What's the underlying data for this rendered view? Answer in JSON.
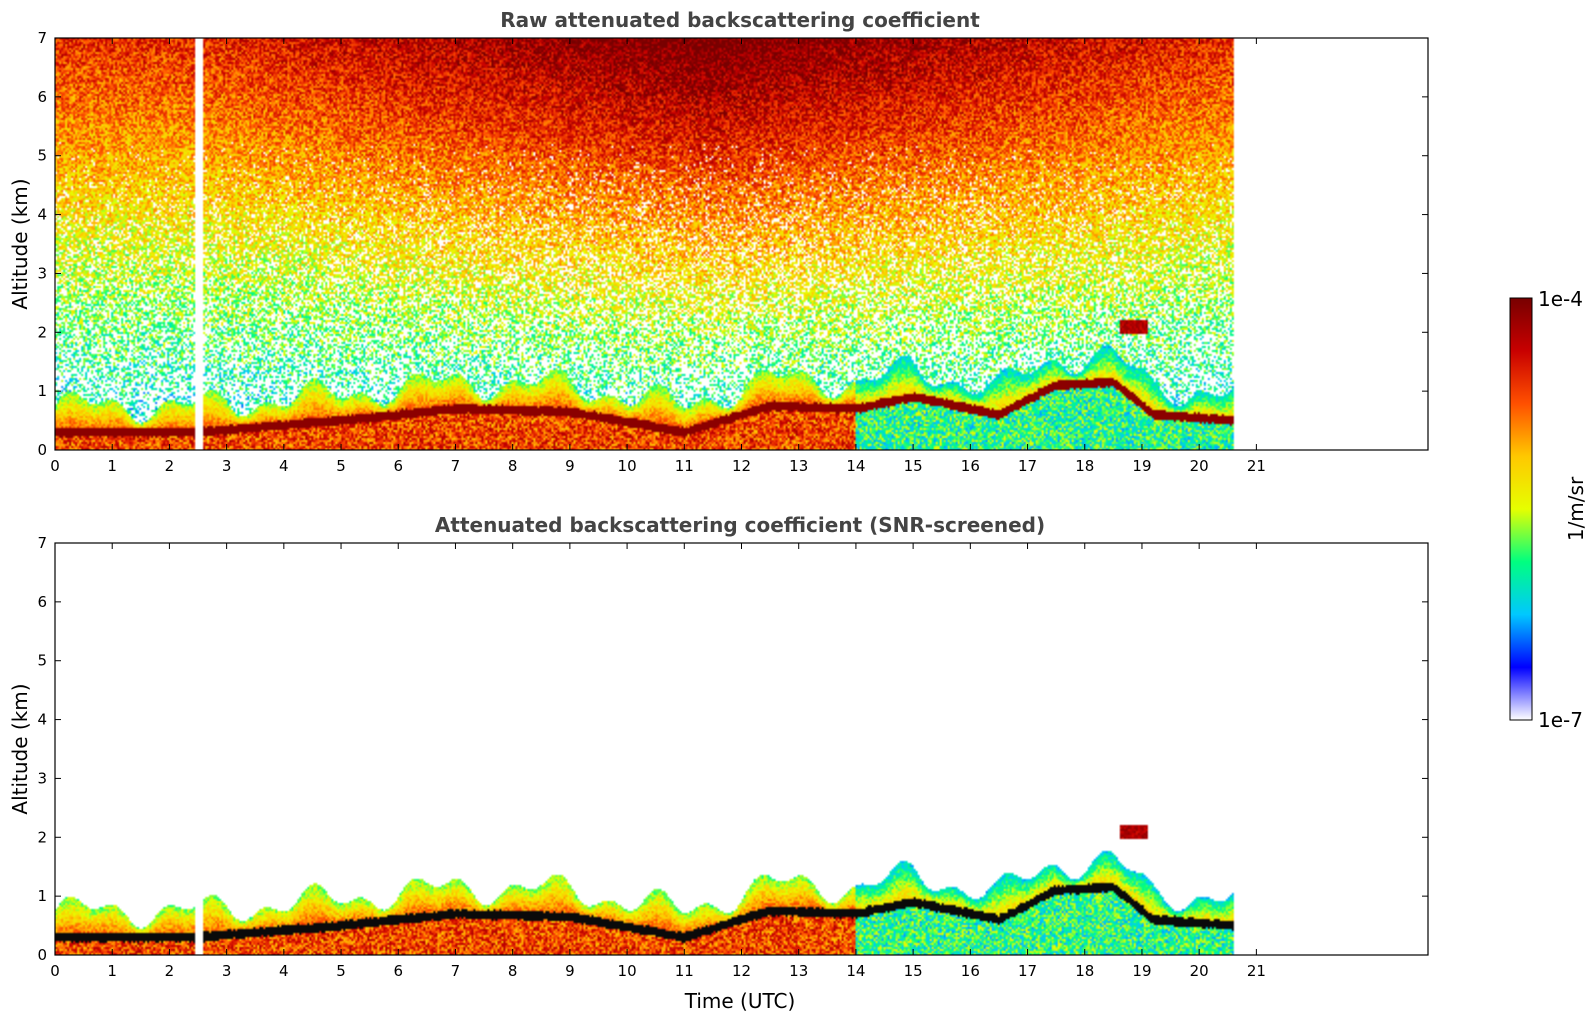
{
  "chart_data": [
    {
      "type": "heatmap",
      "title": "Raw attenuated backscattering coefficient",
      "xlabel": "",
      "ylabel": "Altitude (km)",
      "xlim": [
        0,
        24
      ],
      "ylim": [
        0,
        7
      ],
      "xticks": [
        "0",
        "1",
        "2",
        "3",
        "4",
        "5",
        "6",
        "7",
        "8",
        "9",
        "10",
        "11",
        "12",
        "13",
        "14",
        "15",
        "16",
        "17",
        "18",
        "19",
        "20",
        "21"
      ],
      "yticks": [
        "0",
        "1",
        "2",
        "3",
        "4",
        "5",
        "6",
        "7"
      ],
      "data_end_hour": 20.6,
      "gap_hours": [
        2.45,
        2.58
      ],
      "noise_floor": true,
      "boundary_layer_top_km": [
        {
          "x": 0.0,
          "y": 0.3
        },
        {
          "x": 2.5,
          "y": 0.3
        },
        {
          "x": 5.0,
          "y": 0.5
        },
        {
          "x": 7.0,
          "y": 0.7
        },
        {
          "x": 9.0,
          "y": 0.65
        },
        {
          "x": 11.0,
          "y": 0.3
        },
        {
          "x": 12.5,
          "y": 0.75
        },
        {
          "x": 14.0,
          "y": 0.7
        },
        {
          "x": 15.0,
          "y": 0.9
        },
        {
          "x": 16.5,
          "y": 0.6
        },
        {
          "x": 17.5,
          "y": 1.1
        },
        {
          "x": 18.5,
          "y": 1.15
        },
        {
          "x": 19.2,
          "y": 0.6
        },
        {
          "x": 20.6,
          "y": 0.5
        }
      ],
      "elevated_layer": {
        "x_range": [
          18.6,
          19.1
        ],
        "altitude_km": 2.1
      }
    },
    {
      "type": "heatmap",
      "title": "Attenuated backscattering coefficient (SNR-screened)",
      "xlabel": "Time (UTC)",
      "ylabel": "Altitude (km)",
      "xlim": [
        0,
        24
      ],
      "ylim": [
        0,
        7
      ],
      "xticks": [
        "0",
        "1",
        "2",
        "3",
        "4",
        "5",
        "6",
        "7",
        "8",
        "9",
        "10",
        "11",
        "12",
        "13",
        "14",
        "15",
        "16",
        "17",
        "18",
        "19",
        "20",
        "21"
      ],
      "yticks": [
        "0",
        "1",
        "2",
        "3",
        "4",
        "5",
        "6",
        "7"
      ],
      "data_end_hour": 20.6,
      "gap_hours": [
        2.45,
        2.58
      ],
      "noise_floor": false,
      "boundary_layer_top_km": [
        {
          "x": 0.0,
          "y": 0.3
        },
        {
          "x": 2.5,
          "y": 0.3
        },
        {
          "x": 5.0,
          "y": 0.5
        },
        {
          "x": 7.0,
          "y": 0.7
        },
        {
          "x": 9.0,
          "y": 0.65
        },
        {
          "x": 11.0,
          "y": 0.3
        },
        {
          "x": 12.5,
          "y": 0.75
        },
        {
          "x": 14.0,
          "y": 0.7
        },
        {
          "x": 15.0,
          "y": 0.9
        },
        {
          "x": 16.5,
          "y": 0.6
        },
        {
          "x": 17.5,
          "y": 1.1
        },
        {
          "x": 18.5,
          "y": 1.15
        },
        {
          "x": 19.2,
          "y": 0.6
        },
        {
          "x": 20.6,
          "y": 0.5
        }
      ],
      "elevated_layer": {
        "x_range": [
          18.6,
          19.1
        ],
        "altitude_km": 2.1
      }
    }
  ],
  "colorbar": {
    "label": "1/m/sr",
    "max_label": "1e-4",
    "min_label": "1e-7",
    "colormap": [
      "#ffffff",
      "#0000ff",
      "#00c8ff",
      "#00ff80",
      "#e6ff00",
      "#ffc800",
      "#ff5000",
      "#c80000",
      "#780000"
    ]
  }
}
